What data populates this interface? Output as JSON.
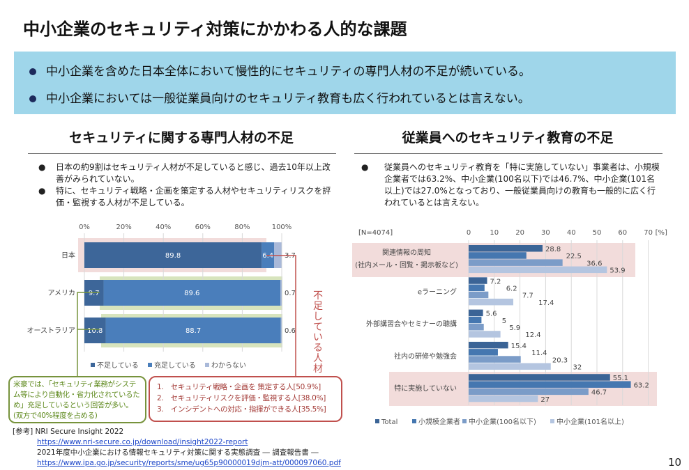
{
  "title": "中小企業のセキュリティ対策にかかわる人的な課題",
  "banner": [
    "中小企業を含めた日本全体において慢性的にセキュリティの専門人材の不足が続いている。",
    "中小企業においては一般従業員向けのセキュリティ教育も広く行われているとは言えない。"
  ],
  "left": {
    "heading": "セキュリティに関する専門人材の不足",
    "bullets": [
      "日本の約9割はセキュリティ人材が不足していると感じ、過去10年以上改善がみられていない。",
      "特に、セキュリティ戦略・企画を策定する人材やセキュリティリスクを評価・監視する人材が不足している。"
    ],
    "vertical_label": "不足している人材",
    "green_note": "米豪では、「セキュリティ業務がシステム等により自動化・省力化されているため」充足しているという回答が多い。(双方で40%程度を占める)",
    "red_list": [
      "1.　セキュリティ戦略・企画を 策定する人[50.9%]",
      "2.　セキュリティリスクを評価・監視する人[38.0%]",
      "3.　インシデントへの対応・指揮ができる人[35.5%]"
    ]
  },
  "right": {
    "heading": "従業員へのセキュリティ教育の不足",
    "bullet": "従業員へのセキュリティ教育を「特に実施していない」事業者は、小規模企業者では63.2%、中小企業(100名以下)では46.7%、中小企業(101名以上)では27.0%となっており、一般従業員向けの教育も一般的に広く行われているとは言えない。"
  },
  "chart_data": [
    {
      "type": "bar",
      "orientation": "horizontal",
      "stacked": true,
      "categories": [
        "日本",
        "アメリカ",
        "オーストラリア"
      ],
      "xticks": [
        "0%",
        "20%",
        "40%",
        "60%",
        "80%",
        "100%"
      ],
      "xlim": [
        0,
        100
      ],
      "series": [
        {
          "name": "不足している",
          "values": [
            89.8,
            9.7,
            10.8
          ],
          "color": "#3d6699"
        },
        {
          "name": "充足している",
          "values": [
            6.4,
            89.6,
            88.7
          ],
          "color": "#4a7ebb"
        },
        {
          "name": "わからない",
          "values": [
            3.7,
            0.7,
            0.6
          ],
          "color": "#a9b9d9"
        }
      ],
      "legend": "bottom",
      "grid": true
    },
    {
      "type": "bar",
      "orientation": "horizontal",
      "note": "[N=4074]",
      "unit": "[%]",
      "xlim": [
        0,
        70
      ],
      "xticks": [
        "0",
        "10",
        "20",
        "30",
        "40",
        "50",
        "60",
        "70"
      ],
      "categories": [
        [
          "関連情報の周知",
          "(社内メール・回覧・掲示板など)"
        ],
        [
          "eラーニング"
        ],
        [
          "外部講習会やセミナーの聴講"
        ],
        [
          "社内の研修や勉強会"
        ],
        [
          "特に実施していない"
        ]
      ],
      "series": [
        {
          "name": "Total",
          "values": [
            28.8,
            7.2,
            5.6,
            15.4,
            55.1
          ],
          "color": "#3b6496"
        },
        {
          "name": "小規模企業者",
          "values": [
            22.5,
            6.2,
            5,
            11.4,
            63.2
          ],
          "color": "#4577b0"
        },
        {
          "name": "中小企業(100名以下)",
          "values": [
            36.6,
            7.7,
            5.9,
            20.3,
            46.7
          ],
          "color": "#7b9cc8"
        },
        {
          "name": "中小企業(101名以上)",
          "values": [
            53.9,
            17.4,
            12.4,
            32,
            27
          ],
          "color": "#b4c5e0"
        }
      ],
      "legend": "bottom",
      "grid": true
    }
  ],
  "refs": {
    "label": "[参考] NRI Secure Insight 2022",
    "link1": "https://www.nri-secure.co.jp/download/insight2022-report",
    "doc2": "2021年度中小企業における情報セキュリティ対策に関する実態調査 ― 調査報告書 ―",
    "link2": "https://www.ipa.go.jp/security/reports/sme/ug65p90000019djm-att/000097060.pdf"
  },
  "page_number": "10"
}
